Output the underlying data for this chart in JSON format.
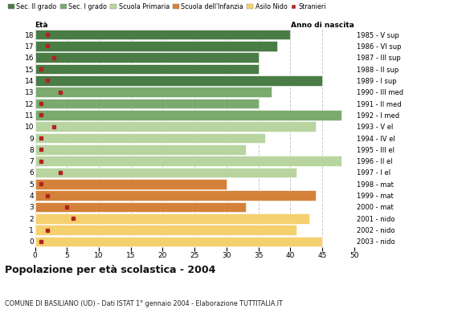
{
  "ages": [
    18,
    17,
    16,
    15,
    14,
    13,
    12,
    11,
    10,
    9,
    8,
    7,
    6,
    5,
    4,
    3,
    2,
    1,
    0
  ],
  "years": [
    "1985 - V sup",
    "1986 - VI sup",
    "1987 - III sup",
    "1988 - II sup",
    "1989 - I sup",
    "1990 - III med",
    "1991 - II med",
    "1992 - I med",
    "1993 - V el",
    "1994 - IV el",
    "1995 - III el",
    "1996 - II el",
    "1997 - I el",
    "1998 - mat",
    "1999 - mat",
    "2000 - mat",
    "2001 - nido",
    "2002 - nido",
    "2003 - nido"
  ],
  "bar_values": [
    40,
    38,
    35,
    35,
    45,
    37,
    35,
    48,
    44,
    36,
    33,
    48,
    41,
    30,
    44,
    33,
    43,
    41,
    45
  ],
  "stranieri_values": [
    2,
    2,
    3,
    1,
    2,
    4,
    1,
    1,
    3,
    1,
    1,
    1,
    4,
    1,
    2,
    5,
    6,
    2,
    1
  ],
  "categories": [
    "Sec. II grado",
    "Sec. I grado",
    "Scuola Primaria",
    "Scuola dell'Infanzia",
    "Asilo Nido"
  ],
  "bar_colors": [
    "#4a7c45",
    "#7aaa6e",
    "#b8d4a0",
    "#d4823a",
    "#f5d06e"
  ],
  "stranieri_color": "#b22222",
  "age_category": [
    0,
    0,
    0,
    0,
    0,
    1,
    1,
    1,
    2,
    2,
    2,
    2,
    2,
    3,
    3,
    3,
    4,
    4,
    4
  ],
  "title": "Popolazione per età scolastica - 2004",
  "subtitle": "COMUNE DI BASILIANO (UD) - Dati ISTAT 1° gennaio 2004 - Elaborazione TUTTITALIA.IT",
  "xlabel_eta": "Età",
  "xlabel_anno": "Anno di nascita",
  "xlim": [
    0,
    50
  ],
  "xticks": [
    0,
    5,
    10,
    15,
    20,
    25,
    30,
    35,
    40,
    45,
    50
  ],
  "grid_color": "#c8c8c8",
  "bg_color": "#ffffff"
}
